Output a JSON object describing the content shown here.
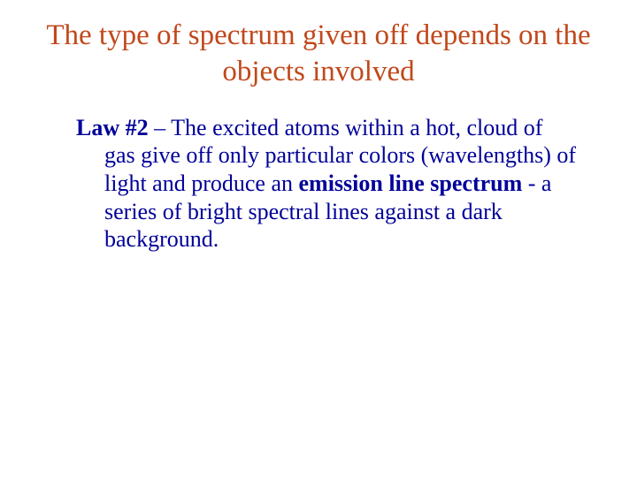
{
  "colors": {
    "title_color": "#c1481a",
    "body_color": "#000099",
    "background": "#ffffff"
  },
  "typography": {
    "family": "Times New Roman, Times, serif",
    "title_fontsize": 33,
    "body_fontsize": 26
  },
  "title": "The type of spectrum given off depends on the objects involved",
  "body": {
    "lead_bold": "Law #2",
    "part1": " – The excited atoms within a hot, cloud of gas give off only particular colors (wavelengths) of light and produce an ",
    "mid_bold": "emission line spectrum",
    "part2": " - a series of bright spectral lines against a dark background."
  }
}
